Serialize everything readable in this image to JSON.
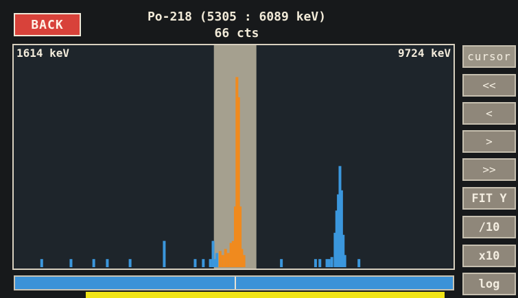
{
  "header": {
    "back_label": "BACK",
    "title": "Po-218 (5305 : 6089 keV)",
    "counts": "66 cts"
  },
  "plot": {
    "range_min_label": "1614 keV",
    "range_max_label": "9724 keV"
  },
  "side_buttons": {
    "cursor": "cursor",
    "fast_left": "<<",
    "left": "<",
    "right": ">",
    "fast_right": ">>",
    "fit_y": "FIT Y",
    "div10": "/10",
    "x10": "x10",
    "log": "log"
  },
  "colors": {
    "back_button": "#d8423a",
    "spectrum": "#3b97dd",
    "roi_spectrum": "#f08a1e",
    "roi_band": "#bdb6a1",
    "scrollbar": "#3b92d8",
    "bottom_bar": "#f1e417"
  },
  "chart_data": {
    "type": "bar",
    "x_range_kev": [
      1614,
      9724
    ],
    "roi_kev": [
      5305,
      6089
    ],
    "counts_in_roi": 66,
    "bars_blue": [
      {
        "kev": 2130,
        "counts": 4
      },
      {
        "kev": 2670,
        "counts": 4
      },
      {
        "kev": 3090,
        "counts": 4
      },
      {
        "kev": 3340,
        "counts": 4
      },
      {
        "kev": 3760,
        "counts": 4
      },
      {
        "kev": 4390,
        "counts": 13
      },
      {
        "kev": 4960,
        "counts": 4
      },
      {
        "kev": 5110,
        "counts": 4
      },
      {
        "kev": 5240,
        "counts": 4
      },
      {
        "kev": 5290,
        "counts": 13
      },
      {
        "kev": 5320,
        "counts": 4
      },
      {
        "kev": 5360,
        "counts": 7
      },
      {
        "kev": 6550,
        "counts": 4
      },
      {
        "kev": 7180,
        "counts": 4
      },
      {
        "kev": 7260,
        "counts": 4
      },
      {
        "kev": 7390,
        "counts": 4
      },
      {
        "kev": 7430,
        "counts": 4
      },
      {
        "kev": 7480,
        "counts": 5
      },
      {
        "kev": 7540,
        "counts": 17
      },
      {
        "kev": 7570,
        "counts": 28
      },
      {
        "kev": 7600,
        "counts": 36
      },
      {
        "kev": 7630,
        "counts": 50
      },
      {
        "kev": 7660,
        "counts": 38
      },
      {
        "kev": 7690,
        "counts": 16
      },
      {
        "kev": 7720,
        "counts": 6
      },
      {
        "kev": 7980,
        "counts": 4
      }
    ],
    "bars_orange": [
      {
        "kev": 5420,
        "counts": 8
      },
      {
        "kev": 5470,
        "counts": 6
      },
      {
        "kev": 5520,
        "counts": 9
      },
      {
        "kev": 5570,
        "counts": 7
      },
      {
        "kev": 5620,
        "counts": 12
      },
      {
        "kev": 5660,
        "counts": 13
      },
      {
        "kev": 5700,
        "counts": 30
      },
      {
        "kev": 5730,
        "counts": 94
      },
      {
        "kev": 5760,
        "counts": 84
      },
      {
        "kev": 5790,
        "counts": 30
      },
      {
        "kev": 5820,
        "counts": 9
      },
      {
        "kev": 5860,
        "counts": 6
      }
    ],
    "ylim": [
      0,
      105
    ]
  }
}
